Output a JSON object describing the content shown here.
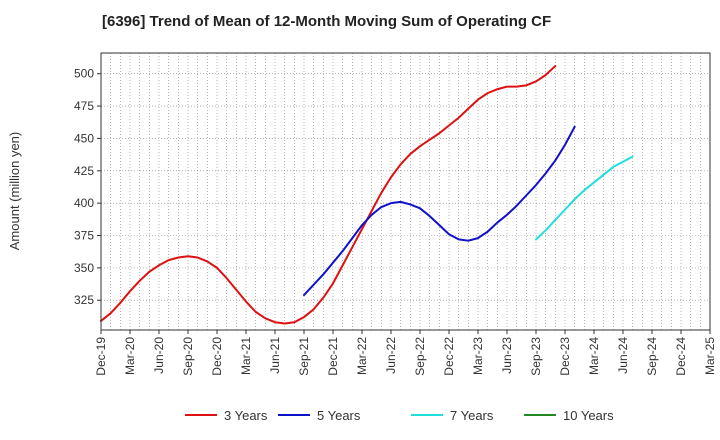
{
  "chart_data": {
    "type": "line",
    "title": "[6396]  Trend of Mean of 12-Month Moving Sum of Operating CF",
    "xlabel": "",
    "ylabel": "Amount (million yen)",
    "ylim": [
      302,
      516
    ],
    "yticks": [
      325,
      350,
      375,
      400,
      425,
      450,
      475,
      500
    ],
    "xticks": [
      "Dec-19",
      "Mar-20",
      "Jun-20",
      "Sep-20",
      "Dec-20",
      "Mar-21",
      "Jun-21",
      "Sep-21",
      "Dec-21",
      "Mar-22",
      "Jun-22",
      "Sep-22",
      "Dec-22",
      "Mar-23",
      "Jun-23",
      "Sep-23",
      "Dec-23",
      "Mar-24",
      "Jun-24",
      "Sep-24",
      "Dec-24",
      "Mar-25"
    ],
    "x_start": "Dec-19",
    "grid": true,
    "legend_position": "bottom",
    "series": [
      {
        "name": "3 Years",
        "color": "#dd1111",
        "values": [
          309,
          315,
          323,
          332,
          340,
          347,
          352,
          356,
          358,
          359,
          358,
          355,
          350,
          342,
          333,
          324,
          316,
          311,
          308,
          307,
          308,
          312,
          318,
          327,
          338,
          352,
          366,
          380,
          394,
          408,
          420,
          430,
          438,
          444,
          449,
          454,
          460,
          466,
          473,
          480,
          485,
          488,
          490,
          490,
          491,
          494,
          499,
          506
        ]
      },
      {
        "name": "5 Years",
        "color": "#1111cc",
        "start_index": 21,
        "values": [
          329,
          337,
          345,
          354,
          363,
          373,
          383,
          391,
          397,
          400,
          401,
          399,
          396,
          390,
          383,
          376,
          372,
          371,
          373,
          378,
          385,
          391,
          398,
          406,
          414,
          423,
          433,
          445,
          459
        ]
      },
      {
        "name": "7 Years",
        "color": "#22dddd",
        "start_index": 45,
        "values": [
          372,
          379,
          387,
          395,
          403,
          410,
          416,
          422,
          428,
          432,
          436
        ]
      },
      {
        "name": "10 Years",
        "color": "#228822",
        "values": []
      }
    ]
  }
}
